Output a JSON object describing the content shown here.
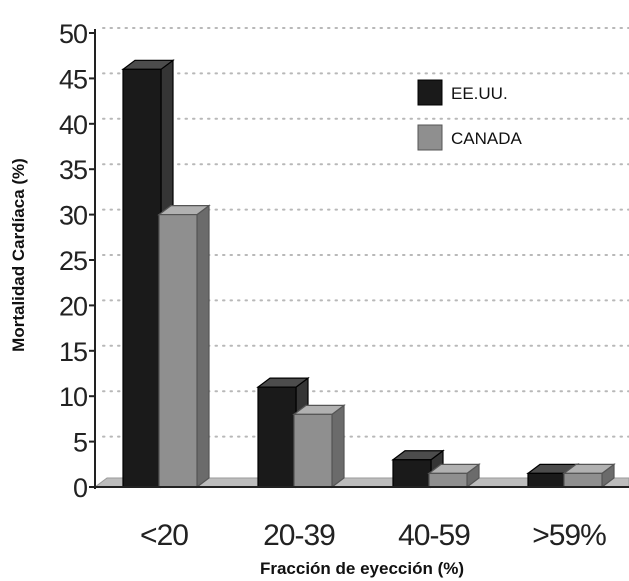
{
  "chart_data": {
    "type": "bar",
    "title": "",
    "xlabel": "Fracción de eyección (%)",
    "ylabel": "Mortalidad Cardíaca (%)",
    "categories": [
      "<20",
      "20-39",
      "40-59",
      ">59%"
    ],
    "series": [
      {
        "name": "EE.UU.",
        "values": [
          46,
          11,
          3,
          1.5
        ],
        "color": "#1a1a1a"
      },
      {
        "name": "CANADA",
        "values": [
          30,
          8,
          1.5,
          1.5
        ],
        "color": "#8f8f8f"
      }
    ],
    "ylim": [
      0,
      50
    ],
    "yticks": [
      "0",
      "5",
      "10",
      "15",
      "20",
      "25",
      "30",
      "35",
      "40",
      "45",
      "50"
    ],
    "grid": true,
    "legend": "top-right"
  }
}
